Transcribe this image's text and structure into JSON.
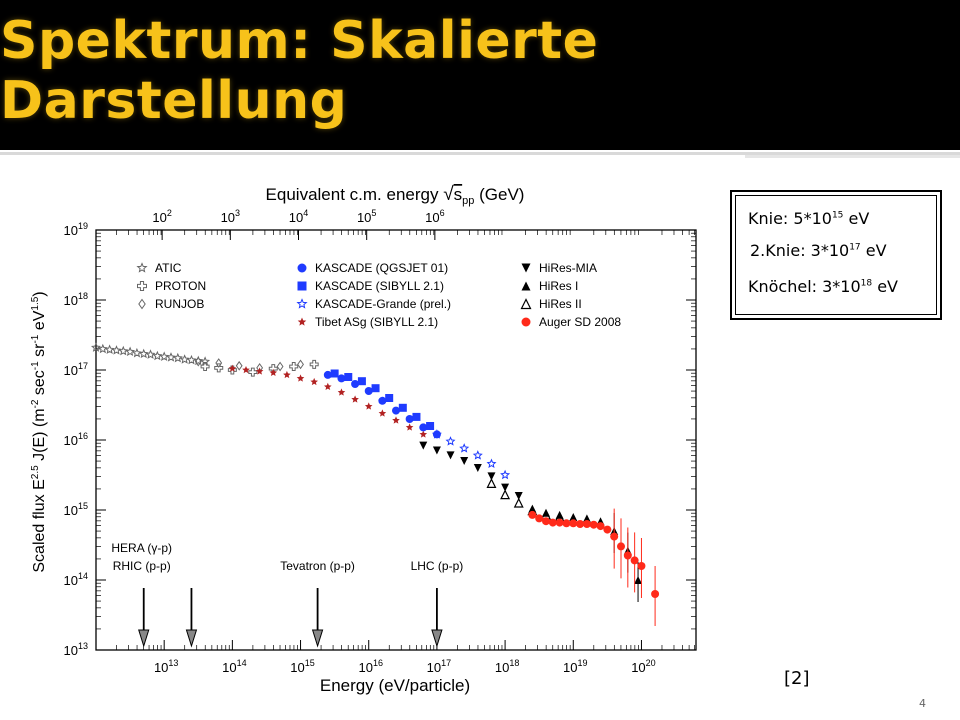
{
  "slide": {
    "title": "Spektrum: Skalierte Darstellung",
    "reference": "[2]",
    "page_number": "4",
    "colors": {
      "title": "#f7c21a",
      "title_bg": "#000000"
    }
  },
  "info_box": {
    "lines": [
      {
        "prefix": "Knie: 5*10",
        "exp": "15",
        "suffix": " eV"
      },
      {
        "prefix": "2.Knie: 3*10",
        "exp": "17",
        "suffix": " eV"
      },
      {
        "prefix": "Knöchel: 3*10",
        "exp": "18",
        "suffix": " eV"
      }
    ]
  },
  "chart_data": {
    "type": "scatter",
    "xlabel": "Energy (eV/particle)",
    "ylabel": "Scaled flux E^2.5 J(E) (m^-2 sec^-1 sr^-1 eV^1.5)",
    "top_xlabel": "Equivalent c.m. energy √s_pp (GeV)",
    "x_scale": "log",
    "y_scale": "log",
    "xlim_log10": [
      12.0,
      20.8
    ],
    "ylim_log10": [
      13,
      19
    ],
    "x_ticks": [
      {
        "base": "10",
        "exp": "13",
        "log": 13
      },
      {
        "base": "10",
        "exp": "14",
        "log": 14
      },
      {
        "base": "10",
        "exp": "15",
        "log": 15
      },
      {
        "base": "10",
        "exp": "16",
        "log": 16
      },
      {
        "base": "10",
        "exp": "17",
        "log": 17
      },
      {
        "base": "10",
        "exp": "18",
        "log": 18
      },
      {
        "base": "10",
        "exp": "19",
        "log": 19
      },
      {
        "base": "10",
        "exp": "20",
        "log": 20
      }
    ],
    "top_ticks": [
      {
        "base": "10",
        "exp": "2",
        "log": 2
      },
      {
        "base": "10",
        "exp": "3",
        "log": 3
      },
      {
        "base": "10",
        "exp": "4",
        "log": 4
      },
      {
        "base": "10",
        "exp": "5",
        "log": 5
      },
      {
        "base": "10",
        "exp": "6",
        "log": 6
      }
    ],
    "y_ticks": [
      {
        "base": "10",
        "exp": "13",
        "log": 13
      },
      {
        "base": "10",
        "exp": "14",
        "log": 14
      },
      {
        "base": "10",
        "exp": "15",
        "log": 15
      },
      {
        "base": "10",
        "exp": "16",
        "log": 16
      },
      {
        "base": "10",
        "exp": "17",
        "log": 17
      },
      {
        "base": "10",
        "exp": "18",
        "log": 18
      },
      {
        "base": "10",
        "exp": "19",
        "log": 19
      }
    ],
    "legend": [
      {
        "name": "ATIC",
        "marker": "star-open",
        "color": "#666666",
        "column": 0,
        "row": 0
      },
      {
        "name": "PROTON",
        "marker": "cross-open",
        "color": "#666666",
        "column": 0,
        "row": 1
      },
      {
        "name": "RUNJOB",
        "marker": "diamond-open",
        "color": "#666666",
        "column": 0,
        "row": 2
      },
      {
        "name": "KASCADE (QGSJET 01)",
        "marker": "circle",
        "color": "#1f3bff",
        "column": 1,
        "row": 0
      },
      {
        "name": "KASCADE (SIBYLL 2.1)",
        "marker": "square",
        "color": "#1f3bff",
        "column": 1,
        "row": 1
      },
      {
        "name": "KASCADE-Grande (prel.)",
        "marker": "star-open",
        "color": "#1f3bff",
        "column": 1,
        "row": 2
      },
      {
        "name": "Tibet ASg (SIBYLL 2.1)",
        "marker": "star",
        "color": "#b22222",
        "column": 1,
        "row": 3
      },
      {
        "name": "HiRes-MIA",
        "marker": "triangle-down",
        "color": "#000000",
        "column": 2,
        "row": 0
      },
      {
        "name": "HiRes I",
        "marker": "triangle-up",
        "color": "#000000",
        "column": 2,
        "row": 1
      },
      {
        "name": "HiRes II",
        "marker": "triangle-open",
        "color": "#000000",
        "column": 2,
        "row": 2
      },
      {
        "name": "Auger SD 2008",
        "marker": "circle",
        "color": "#ff2a1a",
        "column": 2,
        "row": 3
      }
    ],
    "annotations": [
      {
        "lines": [
          "HERA (γ-p)",
          "RHIC (p-p)"
        ],
        "x_log": 12.7,
        "x_log2": 13.4,
        "shaded": true
      },
      {
        "lines": [
          "Tevatron (p-p)"
        ],
        "x_log": 15.25,
        "shaded": true
      },
      {
        "lines": [
          "LHC (p-p)"
        ],
        "x_log": 17.0,
        "shaded": true
      }
    ],
    "series": [
      {
        "name": "ATIC",
        "marker": "star-open",
        "color": "#666666",
        "points": [
          [
            12.0,
            17.32
          ],
          [
            12.1,
            17.3
          ],
          [
            12.2,
            17.29
          ],
          [
            12.3,
            17.28
          ],
          [
            12.4,
            17.27
          ],
          [
            12.5,
            17.26
          ],
          [
            12.6,
            17.24
          ],
          [
            12.7,
            17.23
          ],
          [
            12.8,
            17.22
          ],
          [
            12.9,
            17.2
          ],
          [
            13.0,
            17.19
          ],
          [
            13.1,
            17.18
          ],
          [
            13.2,
            17.17
          ],
          [
            13.3,
            17.15
          ],
          [
            13.4,
            17.14
          ],
          [
            13.5,
            17.13
          ],
          [
            13.6,
            17.12
          ]
        ]
      },
      {
        "name": "PROTON",
        "marker": "cross-open",
        "color": "#666666",
        "points": [
          [
            13.6,
            17.05
          ],
          [
            13.8,
            17.03
          ],
          [
            14.0,
            17.0
          ],
          [
            14.3,
            16.97
          ],
          [
            14.6,
            17.02
          ],
          [
            14.9,
            17.05
          ],
          [
            15.2,
            17.08
          ]
        ]
      },
      {
        "name": "RUNJOB",
        "marker": "diamond-open",
        "color": "#666666",
        "points": [
          [
            13.5,
            17.12
          ],
          [
            13.8,
            17.1
          ],
          [
            14.1,
            17.06
          ],
          [
            14.4,
            17.03
          ],
          [
            14.7,
            17.05
          ],
          [
            15.0,
            17.08
          ]
        ]
      },
      {
        "name": "Tibet ASg (SIBYLL 2.1)",
        "marker": "star",
        "color": "#b22222",
        "points": [
          [
            14.0,
            17.02
          ],
          [
            14.2,
            17.0
          ],
          [
            14.4,
            16.98
          ],
          [
            14.6,
            16.96
          ],
          [
            14.8,
            16.93
          ],
          [
            15.0,
            16.88
          ],
          [
            15.2,
            16.83
          ],
          [
            15.4,
            16.76
          ],
          [
            15.6,
            16.68
          ],
          [
            15.8,
            16.58
          ],
          [
            16.0,
            16.48
          ],
          [
            16.2,
            16.38
          ],
          [
            16.4,
            16.28
          ],
          [
            16.6,
            16.18
          ],
          [
            16.8,
            16.08
          ]
        ]
      },
      {
        "name": "KASCADE (QGSJET 01)",
        "marker": "circle",
        "color": "#1f3bff",
        "points": [
          [
            15.4,
            16.93
          ],
          [
            15.6,
            16.88
          ],
          [
            15.8,
            16.8
          ],
          [
            16.0,
            16.7
          ],
          [
            16.2,
            16.56
          ],
          [
            16.4,
            16.42
          ],
          [
            16.6,
            16.3
          ],
          [
            16.8,
            16.18
          ],
          [
            17.0,
            16.08
          ]
        ]
      },
      {
        "name": "KASCADE (SIBYLL 2.1)",
        "marker": "square",
        "color": "#1f3bff",
        "points": [
          [
            15.5,
            16.95
          ],
          [
            15.7,
            16.9
          ],
          [
            15.9,
            16.84
          ],
          [
            16.1,
            16.74
          ],
          [
            16.3,
            16.6
          ],
          [
            16.5,
            16.46
          ],
          [
            16.7,
            16.33
          ],
          [
            16.9,
            16.2
          ]
        ]
      },
      {
        "name": "KASCADE-Grande (prel.)",
        "marker": "star-open",
        "color": "#1f3bff",
        "points": [
          [
            17.0,
            16.08
          ],
          [
            17.2,
            15.98
          ],
          [
            17.4,
            15.88
          ],
          [
            17.6,
            15.78
          ],
          [
            17.8,
            15.66
          ],
          [
            18.0,
            15.5
          ]
        ]
      },
      {
        "name": "HiRes-MIA",
        "marker": "triangle-down",
        "color": "#000000",
        "points": [
          [
            16.8,
            15.92
          ],
          [
            17.0,
            15.85
          ],
          [
            17.2,
            15.78
          ],
          [
            17.4,
            15.7
          ],
          [
            17.6,
            15.6
          ],
          [
            17.8,
            15.48
          ],
          [
            18.0,
            15.32
          ],
          [
            18.2,
            15.2
          ]
        ]
      },
      {
        "name": "HiRes I",
        "marker": "triangle-up",
        "color": "#000000",
        "points": [
          [
            18.4,
            15.02
          ],
          [
            18.6,
            14.96
          ],
          [
            18.8,
            14.93
          ],
          [
            19.0,
            14.9
          ],
          [
            19.2,
            14.88
          ],
          [
            19.4,
            14.84
          ],
          [
            19.6,
            14.7
          ],
          [
            19.8,
            14.42
          ],
          [
            19.95,
            14.0
          ]
        ]
      },
      {
        "name": "HiRes II",
        "marker": "triangle-open",
        "color": "#000000",
        "points": [
          [
            17.8,
            15.38
          ],
          [
            18.0,
            15.22
          ],
          [
            18.2,
            15.1
          ],
          [
            18.4,
            14.99
          ],
          [
            18.6,
            14.93
          ],
          [
            18.8,
            14.9
          ]
        ]
      },
      {
        "name": "Auger SD 2008",
        "marker": "circle",
        "color": "#ff2a1a",
        "points": [
          [
            18.4,
            14.93
          ],
          [
            18.5,
            14.88
          ],
          [
            18.6,
            14.84
          ],
          [
            18.7,
            14.82
          ],
          [
            18.8,
            14.82
          ],
          [
            18.9,
            14.81
          ],
          [
            19.0,
            14.81
          ],
          [
            19.1,
            14.8
          ],
          [
            19.2,
            14.8
          ],
          [
            19.3,
            14.79
          ],
          [
            19.4,
            14.77
          ],
          [
            19.5,
            14.72
          ],
          [
            19.6,
            14.62
          ],
          [
            19.7,
            14.48
          ],
          [
            19.8,
            14.35
          ],
          [
            19.9,
            14.28
          ],
          [
            20.0,
            14.2
          ],
          [
            20.2,
            13.8
          ]
        ]
      }
    ]
  }
}
